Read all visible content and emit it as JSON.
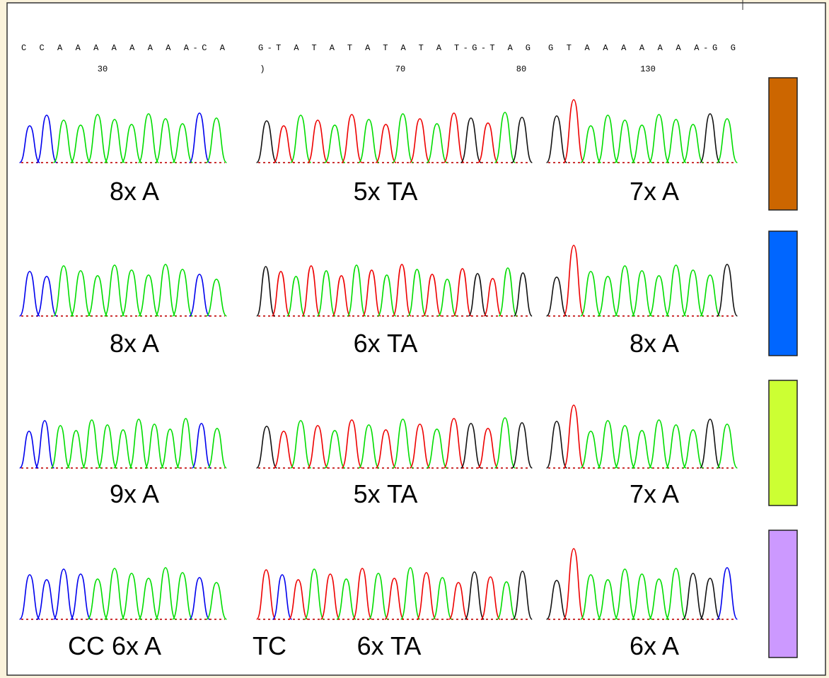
{
  "columns": [
    {
      "sequence": "C C A A A A A A A A-C A",
      "positions": [
        "30"
      ]
    },
    {
      "sequence": "G-T A T A T A T A T A T-G-T A G",
      "positions": [
        ")",
        "70",
        "80"
      ]
    },
    {
      "sequence": "G T A A A A A A A-G G",
      "positions": [
        "130"
      ]
    }
  ],
  "rows": [
    {
      "labels": [
        "8x A",
        "5x TA",
        "7x A"
      ],
      "color": "#cc6600"
    },
    {
      "labels": [
        "8x A",
        "6x TA",
        "8x A"
      ],
      "color": "#0066ff"
    },
    {
      "labels": [
        "9x A",
        "5x TA",
        "7x A"
      ],
      "color": "#ccff33"
    },
    {
      "labels": [
        "CC 6x A",
        "TC",
        "6x TA",
        "6x A"
      ],
      "color": "#cc99ff"
    }
  ]
}
